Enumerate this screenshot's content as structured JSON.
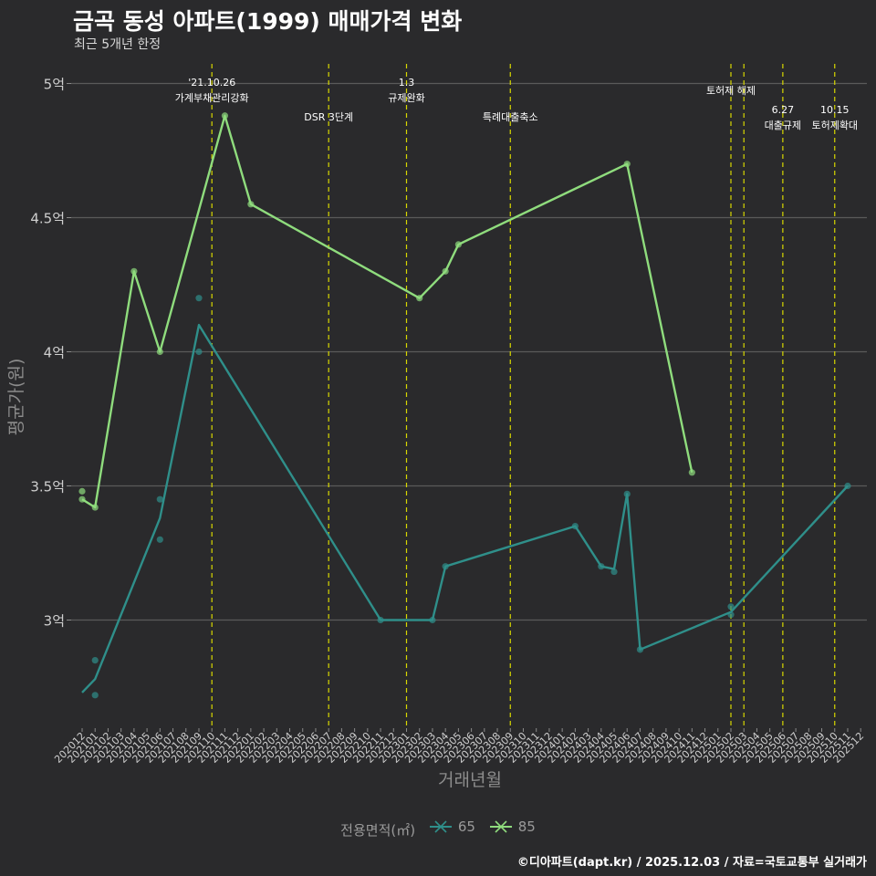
{
  "header": {
    "title": "금곡 동성 아파트(1999) 매매가격 변화",
    "subtitle": "최근 5개년 한정"
  },
  "caption": "©디아파트(dapt.kr) / 2025.12.03 / 자료=국토교통부 실거래가",
  "colors": {
    "background": "#2a2a2c",
    "grid": "#5a5a5a",
    "series_65": "#2f8f8a",
    "series_85": "#8fdc7d",
    "event_line": "#d8d800",
    "axis_text": "#cfcfcf",
    "axis_title": "#8c8c8c"
  },
  "chart_data": {
    "type": "line",
    "title": "금곡 동성 아파트(1999) 매매가격 변화",
    "subtitle": "최근 5개년 한정",
    "xlabel": "거래년월",
    "ylabel": "평균가(원)",
    "categories": [
      "202012",
      "202101",
      "202102",
      "202103",
      "202104",
      "202105",
      "202106",
      "202107",
      "202108",
      "202109",
      "202110",
      "202111",
      "202112",
      "202201",
      "202202",
      "202203",
      "202204",
      "202205",
      "202206",
      "202207",
      "202208",
      "202209",
      "202210",
      "202211",
      "202212",
      "202301",
      "202302",
      "202303",
      "202304",
      "202305",
      "202306",
      "202307",
      "202308",
      "202309",
      "202310",
      "202311",
      "202312",
      "202401",
      "202402",
      "202403",
      "202404",
      "202405",
      "202406",
      "202407",
      "202408",
      "202409",
      "202410",
      "202411",
      "202412",
      "202501",
      "202502",
      "202503",
      "202504",
      "202505",
      "202506",
      "202507",
      "202508",
      "202509",
      "202510",
      "202511",
      "202512"
    ],
    "yticks": [
      3.0,
      3.5,
      4.0,
      4.5,
      5.0
    ],
    "ytick_labels": [
      "3억",
      "3.5억",
      "4억",
      "4.5억",
      "5억"
    ],
    "ylim": [
      2.6,
      5.05
    ],
    "legend_title": "전용면적(㎡)",
    "series": [
      {
        "name": "65",
        "color": "#2f8f8a",
        "line": [
          [
            "202012",
            2.73
          ],
          [
            "202101",
            2.78
          ],
          [
            "202106",
            3.38
          ],
          [
            "202109",
            4.1
          ],
          [
            "202211",
            3.0
          ],
          [
            "202303",
            3.0
          ],
          [
            "202304",
            3.2
          ],
          [
            "202402",
            3.35
          ],
          [
            "202404",
            3.2
          ],
          [
            "202405",
            3.19
          ],
          [
            "202406",
            3.47
          ],
          [
            "202407",
            2.89
          ],
          [
            "202502",
            3.03
          ],
          [
            "202511",
            3.5
          ]
        ],
        "points": [
          [
            "202101",
            2.85
          ],
          [
            "202101",
            2.72
          ],
          [
            "202106",
            3.45
          ],
          [
            "202106",
            3.3
          ],
          [
            "202109",
            4.2
          ],
          [
            "202109",
            4.0
          ],
          [
            "202211",
            3.0
          ],
          [
            "202303",
            3.0
          ],
          [
            "202304",
            3.2
          ],
          [
            "202402",
            3.35
          ],
          [
            "202404",
            3.2
          ],
          [
            "202405",
            3.18
          ],
          [
            "202406",
            3.47
          ],
          [
            "202407",
            2.89
          ],
          [
            "202502",
            3.05
          ],
          [
            "202502",
            3.02
          ],
          [
            "202511",
            3.5
          ]
        ]
      },
      {
        "name": "85",
        "color": "#8fdc7d",
        "line": [
          [
            "202012",
            3.45
          ],
          [
            "202101",
            3.42
          ],
          [
            "202104",
            4.3
          ],
          [
            "202106",
            4.0
          ],
          [
            "202111",
            4.88
          ],
          [
            "202201",
            4.55
          ],
          [
            "202302",
            4.2
          ],
          [
            "202304",
            4.3
          ],
          [
            "202305",
            4.4
          ],
          [
            "202406",
            4.7
          ],
          [
            "202411",
            3.55
          ]
        ],
        "points": [
          [
            "202012",
            3.48
          ],
          [
            "202012",
            3.45
          ],
          [
            "202101",
            3.42
          ],
          [
            "202104",
            4.3
          ],
          [
            "202106",
            4.0
          ],
          [
            "202111",
            4.88
          ],
          [
            "202201",
            4.55
          ],
          [
            "202302",
            4.2
          ],
          [
            "202304",
            4.3
          ],
          [
            "202305",
            4.4
          ],
          [
            "202406",
            4.7
          ],
          [
            "202411",
            3.55
          ]
        ]
      }
    ],
    "events": [
      {
        "month": "202110",
        "lines": [
          "'21.10.26",
          "가계부채관리강화"
        ],
        "row": "top"
      },
      {
        "month": "202207",
        "lines": [
          "DSR 3단계"
        ],
        "row": "low"
      },
      {
        "month": "202301",
        "lines": [
          "1.3",
          "규제완화"
        ],
        "row": "top"
      },
      {
        "month": "202309",
        "lines": [
          "특례대출축소"
        ],
        "row": "low"
      },
      {
        "month": "202502",
        "lines": [
          "토허제 해제"
        ],
        "row": "mid"
      },
      {
        "month": "202503",
        "lines": [],
        "row": "mid"
      },
      {
        "month": "202506",
        "lines": [
          "6.27",
          "대출규제"
        ],
        "row": "lowest"
      },
      {
        "month": "202510",
        "lines": [
          "10.15",
          "토허제확대"
        ],
        "row": "lowest"
      }
    ]
  }
}
